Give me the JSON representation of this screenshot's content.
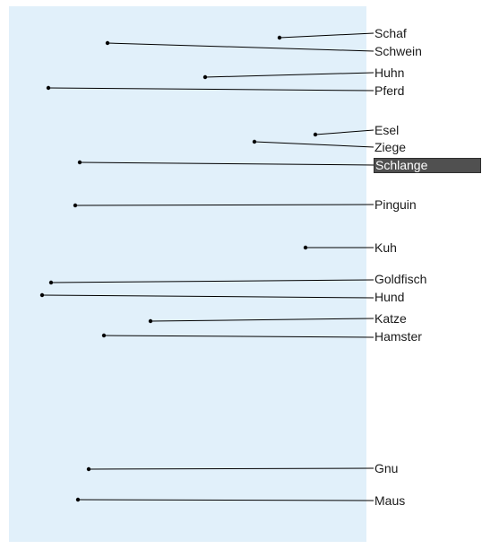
{
  "colors": {
    "panel_background": "#e1f0fa",
    "line": "#000000",
    "selected_background": "#505050",
    "selected_text": "#ffffff"
  },
  "labels": [
    {
      "id": "schaf",
      "text": "Schaf",
      "selected": false
    },
    {
      "id": "schwein",
      "text": "Schwein",
      "selected": false
    },
    {
      "id": "huhn",
      "text": "Huhn",
      "selected": false
    },
    {
      "id": "pferd",
      "text": "Pferd",
      "selected": false
    },
    {
      "id": "esel",
      "text": "Esel",
      "selected": false
    },
    {
      "id": "ziege",
      "text": "Ziege",
      "selected": false
    },
    {
      "id": "schlange",
      "text": "Schlange",
      "selected": true
    },
    {
      "id": "pinguin",
      "text": "Pinguin",
      "selected": false
    },
    {
      "id": "kuh",
      "text": "Kuh",
      "selected": false
    },
    {
      "id": "goldfisch",
      "text": "Goldfisch",
      "selected": false
    },
    {
      "id": "hund",
      "text": "Hund",
      "selected": false
    },
    {
      "id": "katze",
      "text": "Katze",
      "selected": false
    },
    {
      "id": "hamster",
      "text": "Hamster",
      "selected": false
    },
    {
      "id": "gnu",
      "text": "Gnu",
      "selected": false
    },
    {
      "id": "maus",
      "text": "Maus",
      "selected": false
    }
  ]
}
